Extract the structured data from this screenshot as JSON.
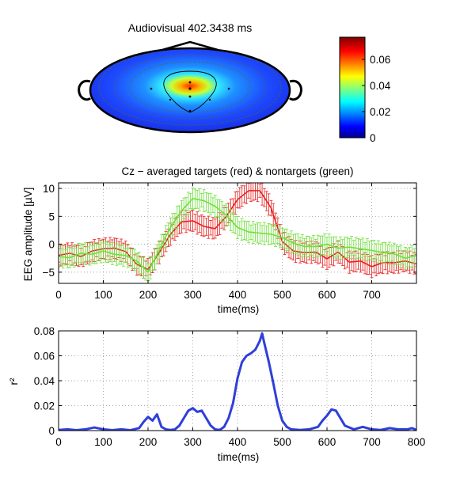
{
  "chart_data": [
    {
      "type": "heatmap",
      "title": "Audiovisual 402.3438 ms",
      "colorbar": {
        "ticks": [
          "0",
          "0.02",
          "0.04",
          "0.06"
        ],
        "range": [
          0,
          0.077
        ]
      },
      "peak_value": 0.077,
      "grid": false
    },
    {
      "type": "line",
      "title": "Cz − averaged targets (red) & nontargets (green)",
      "xlabel": "time(ms)",
      "ylabel": "EEG amplitude [µV]",
      "xlim": [
        0,
        800
      ],
      "ylim": [
        -7,
        11
      ],
      "xticks": [
        "0",
        "100",
        "200",
        "300",
        "400",
        "500",
        "600",
        "700"
      ],
      "yticks": [
        "10",
        "5",
        "0",
        "−5"
      ],
      "grid": true,
      "x": [
        0,
        25,
        50,
        75,
        100,
        125,
        150,
        175,
        200,
        225,
        250,
        275,
        300,
        325,
        350,
        375,
        400,
        425,
        450,
        475,
        500,
        525,
        550,
        575,
        600,
        625,
        650,
        675,
        700,
        725,
        750,
        775,
        800
      ],
      "series": [
        {
          "values": [
            -2.0,
            -1.6,
            -2.2,
            -1.2,
            -0.8,
            -0.7,
            -1.3,
            -3.6,
            -4.5,
            -1.5,
            1.8,
            4.0,
            4.2,
            3.2,
            2.8,
            5.0,
            8.0,
            9.6,
            9.6,
            6.5,
            0.5,
            -1.2,
            -1.5,
            -1.4,
            -2.6,
            -1.4,
            -3.2,
            -3.0,
            -4.0,
            -3.3,
            -3.3,
            -3.0,
            -3.5
          ],
          "color": "#e81e1e"
        },
        {
          "values": [
            -2.2,
            -2.4,
            -1.6,
            -1.8,
            -1.2,
            -1.8,
            -2.0,
            -3.0,
            -5.0,
            -1.0,
            3.0,
            6.0,
            8.2,
            7.8,
            6.8,
            5.2,
            3.0,
            2.2,
            2.0,
            1.8,
            1.2,
            0.2,
            -0.4,
            -0.4,
            0.0,
            -0.7,
            -0.5,
            -0.8,
            -1.1,
            -1.5,
            -1.7,
            -2.5,
            -2.0
          ],
          "color": "#6ee03a"
        }
      ],
      "error_half_width": 1.6
    },
    {
      "type": "line",
      "xlabel": "time(ms)",
      "ylabel": "r²",
      "xlim": [
        0,
        800
      ],
      "ylim": [
        0,
        0.08
      ],
      "xticks": [
        "0",
        "100",
        "200",
        "300",
        "400",
        "500",
        "600",
        "700",
        "800"
      ],
      "yticks": [
        "0.08",
        "0.06",
        "0.04",
        "0.02",
        "0"
      ],
      "grid": true,
      "series": [
        {
          "color": "#2f3fd9",
          "x": [
            0,
            20,
            40,
            60,
            80,
            100,
            120,
            140,
            160,
            180,
            190,
            200,
            210,
            220,
            230,
            240,
            250,
            260,
            270,
            280,
            290,
            300,
            310,
            320,
            330,
            340,
            350,
            360,
            370,
            380,
            390,
            400,
            410,
            420,
            430,
            440,
            450,
            455,
            460,
            470,
            480,
            490,
            500,
            510,
            520,
            540,
            560,
            580,
            590,
            600,
            610,
            620,
            630,
            640,
            660,
            680,
            700,
            720,
            740,
            760,
            780,
            790,
            800
          ],
          "values": [
            0.0005,
            0.001,
            0.0003,
            0.001,
            0.0025,
            0.001,
            0.0003,
            0.001,
            0.0003,
            0.002,
            0.007,
            0.011,
            0.008,
            0.013,
            0.003,
            0.001,
            0.0005,
            0.001,
            0.004,
            0.01,
            0.016,
            0.018,
            0.015,
            0.016,
            0.01,
            0.004,
            0.001,
            0.0005,
            0.003,
            0.01,
            0.022,
            0.042,
            0.055,
            0.06,
            0.062,
            0.065,
            0.072,
            0.078,
            0.07,
            0.055,
            0.038,
            0.02,
            0.008,
            0.003,
            0.001,
            0.0005,
            0.001,
            0.003,
            0.008,
            0.012,
            0.017,
            0.016,
            0.01,
            0.004,
            0.001,
            0.003,
            0.001,
            0.0005,
            0.002,
            0.001,
            0.001,
            0.002,
            0.0005
          ]
        }
      ]
    }
  ]
}
